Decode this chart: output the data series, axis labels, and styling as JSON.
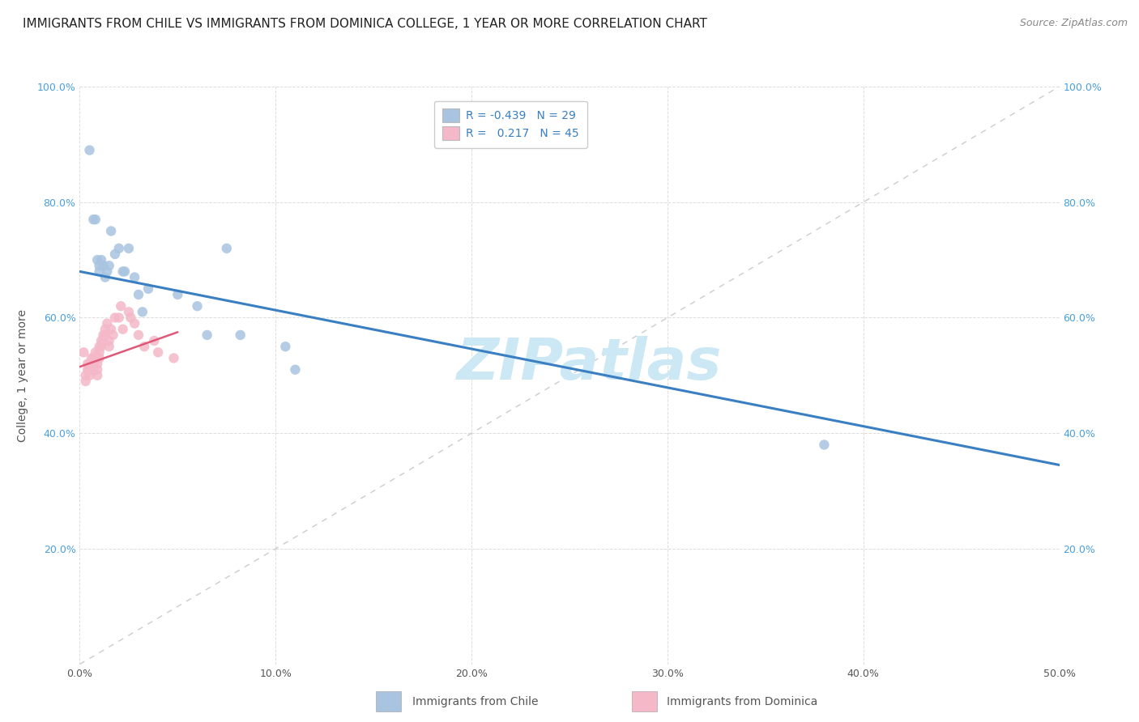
{
  "title": "IMMIGRANTS FROM CHILE VS IMMIGRANTS FROM DOMINICA COLLEGE, 1 YEAR OR MORE CORRELATION CHART",
  "source": "Source: ZipAtlas.com",
  "ylabel": "College, 1 year or more",
  "xlim": [
    0.0,
    0.5
  ],
  "ylim": [
    0.0,
    1.0
  ],
  "chile_R": "-0.439",
  "chile_N": "29",
  "dominica_R": "0.217",
  "dominica_N": "45",
  "chile_color": "#a8c4e0",
  "dominica_color": "#f4b8c8",
  "chile_line_color": "#3a7fc1",
  "dominica_line_color": "#e05878",
  "diagonal_color": "#cccccc",
  "title_fontsize": 11,
  "axis_label_fontsize": 10,
  "tick_fontsize": 9,
  "legend_fontsize": 10,
  "source_fontsize": 9,
  "right_axis_color": "#4a9fe0",
  "tick_color": "#4a9fe0",
  "scatter_size": 80,
  "chile_x": [
    0.005,
    0.007,
    0.008,
    0.009,
    0.01,
    0.01,
    0.011,
    0.012,
    0.013,
    0.014,
    0.015,
    0.016,
    0.018,
    0.02,
    0.022,
    0.023,
    0.025,
    0.028,
    0.03,
    0.032,
    0.035,
    0.05,
    0.06,
    0.065,
    0.075,
    0.082,
    0.105,
    0.11,
    0.38
  ],
  "chile_y": [
    0.89,
    0.77,
    0.77,
    0.7,
    0.69,
    0.68,
    0.7,
    0.69,
    0.67,
    0.68,
    0.69,
    0.75,
    0.71,
    0.72,
    0.68,
    0.68,
    0.72,
    0.67,
    0.64,
    0.61,
    0.65,
    0.64,
    0.62,
    0.57,
    0.72,
    0.57,
    0.55,
    0.51,
    0.38
  ],
  "dominica_x": [
    0.002,
    0.003,
    0.003,
    0.004,
    0.004,
    0.005,
    0.005,
    0.005,
    0.006,
    0.006,
    0.006,
    0.007,
    0.007,
    0.007,
    0.008,
    0.008,
    0.009,
    0.009,
    0.009,
    0.01,
    0.01,
    0.01,
    0.011,
    0.011,
    0.012,
    0.012,
    0.013,
    0.013,
    0.014,
    0.015,
    0.015,
    0.016,
    0.017,
    0.018,
    0.02,
    0.021,
    0.022,
    0.025,
    0.026,
    0.028,
    0.03,
    0.033,
    0.038,
    0.04,
    0.048
  ],
  "dominica_y": [
    0.54,
    0.5,
    0.49,
    0.52,
    0.51,
    0.52,
    0.51,
    0.5,
    0.53,
    0.52,
    0.51,
    0.53,
    0.52,
    0.51,
    0.54,
    0.53,
    0.52,
    0.51,
    0.5,
    0.55,
    0.54,
    0.53,
    0.56,
    0.55,
    0.57,
    0.56,
    0.58,
    0.57,
    0.59,
    0.56,
    0.55,
    0.58,
    0.57,
    0.6,
    0.6,
    0.62,
    0.58,
    0.61,
    0.6,
    0.59,
    0.57,
    0.55,
    0.56,
    0.54,
    0.53
  ],
  "watermark_text": "ZIPatlas",
  "watermark_color": "#cce8f5",
  "watermark_fontsize": 52,
  "blue_line_x0": 0.0,
  "blue_line_y0": 0.68,
  "blue_line_x1": 0.5,
  "blue_line_y1": 0.345,
  "pink_line_x0": 0.0,
  "pink_line_y0": 0.515,
  "pink_line_x1": 0.05,
  "pink_line_y1": 0.575
}
